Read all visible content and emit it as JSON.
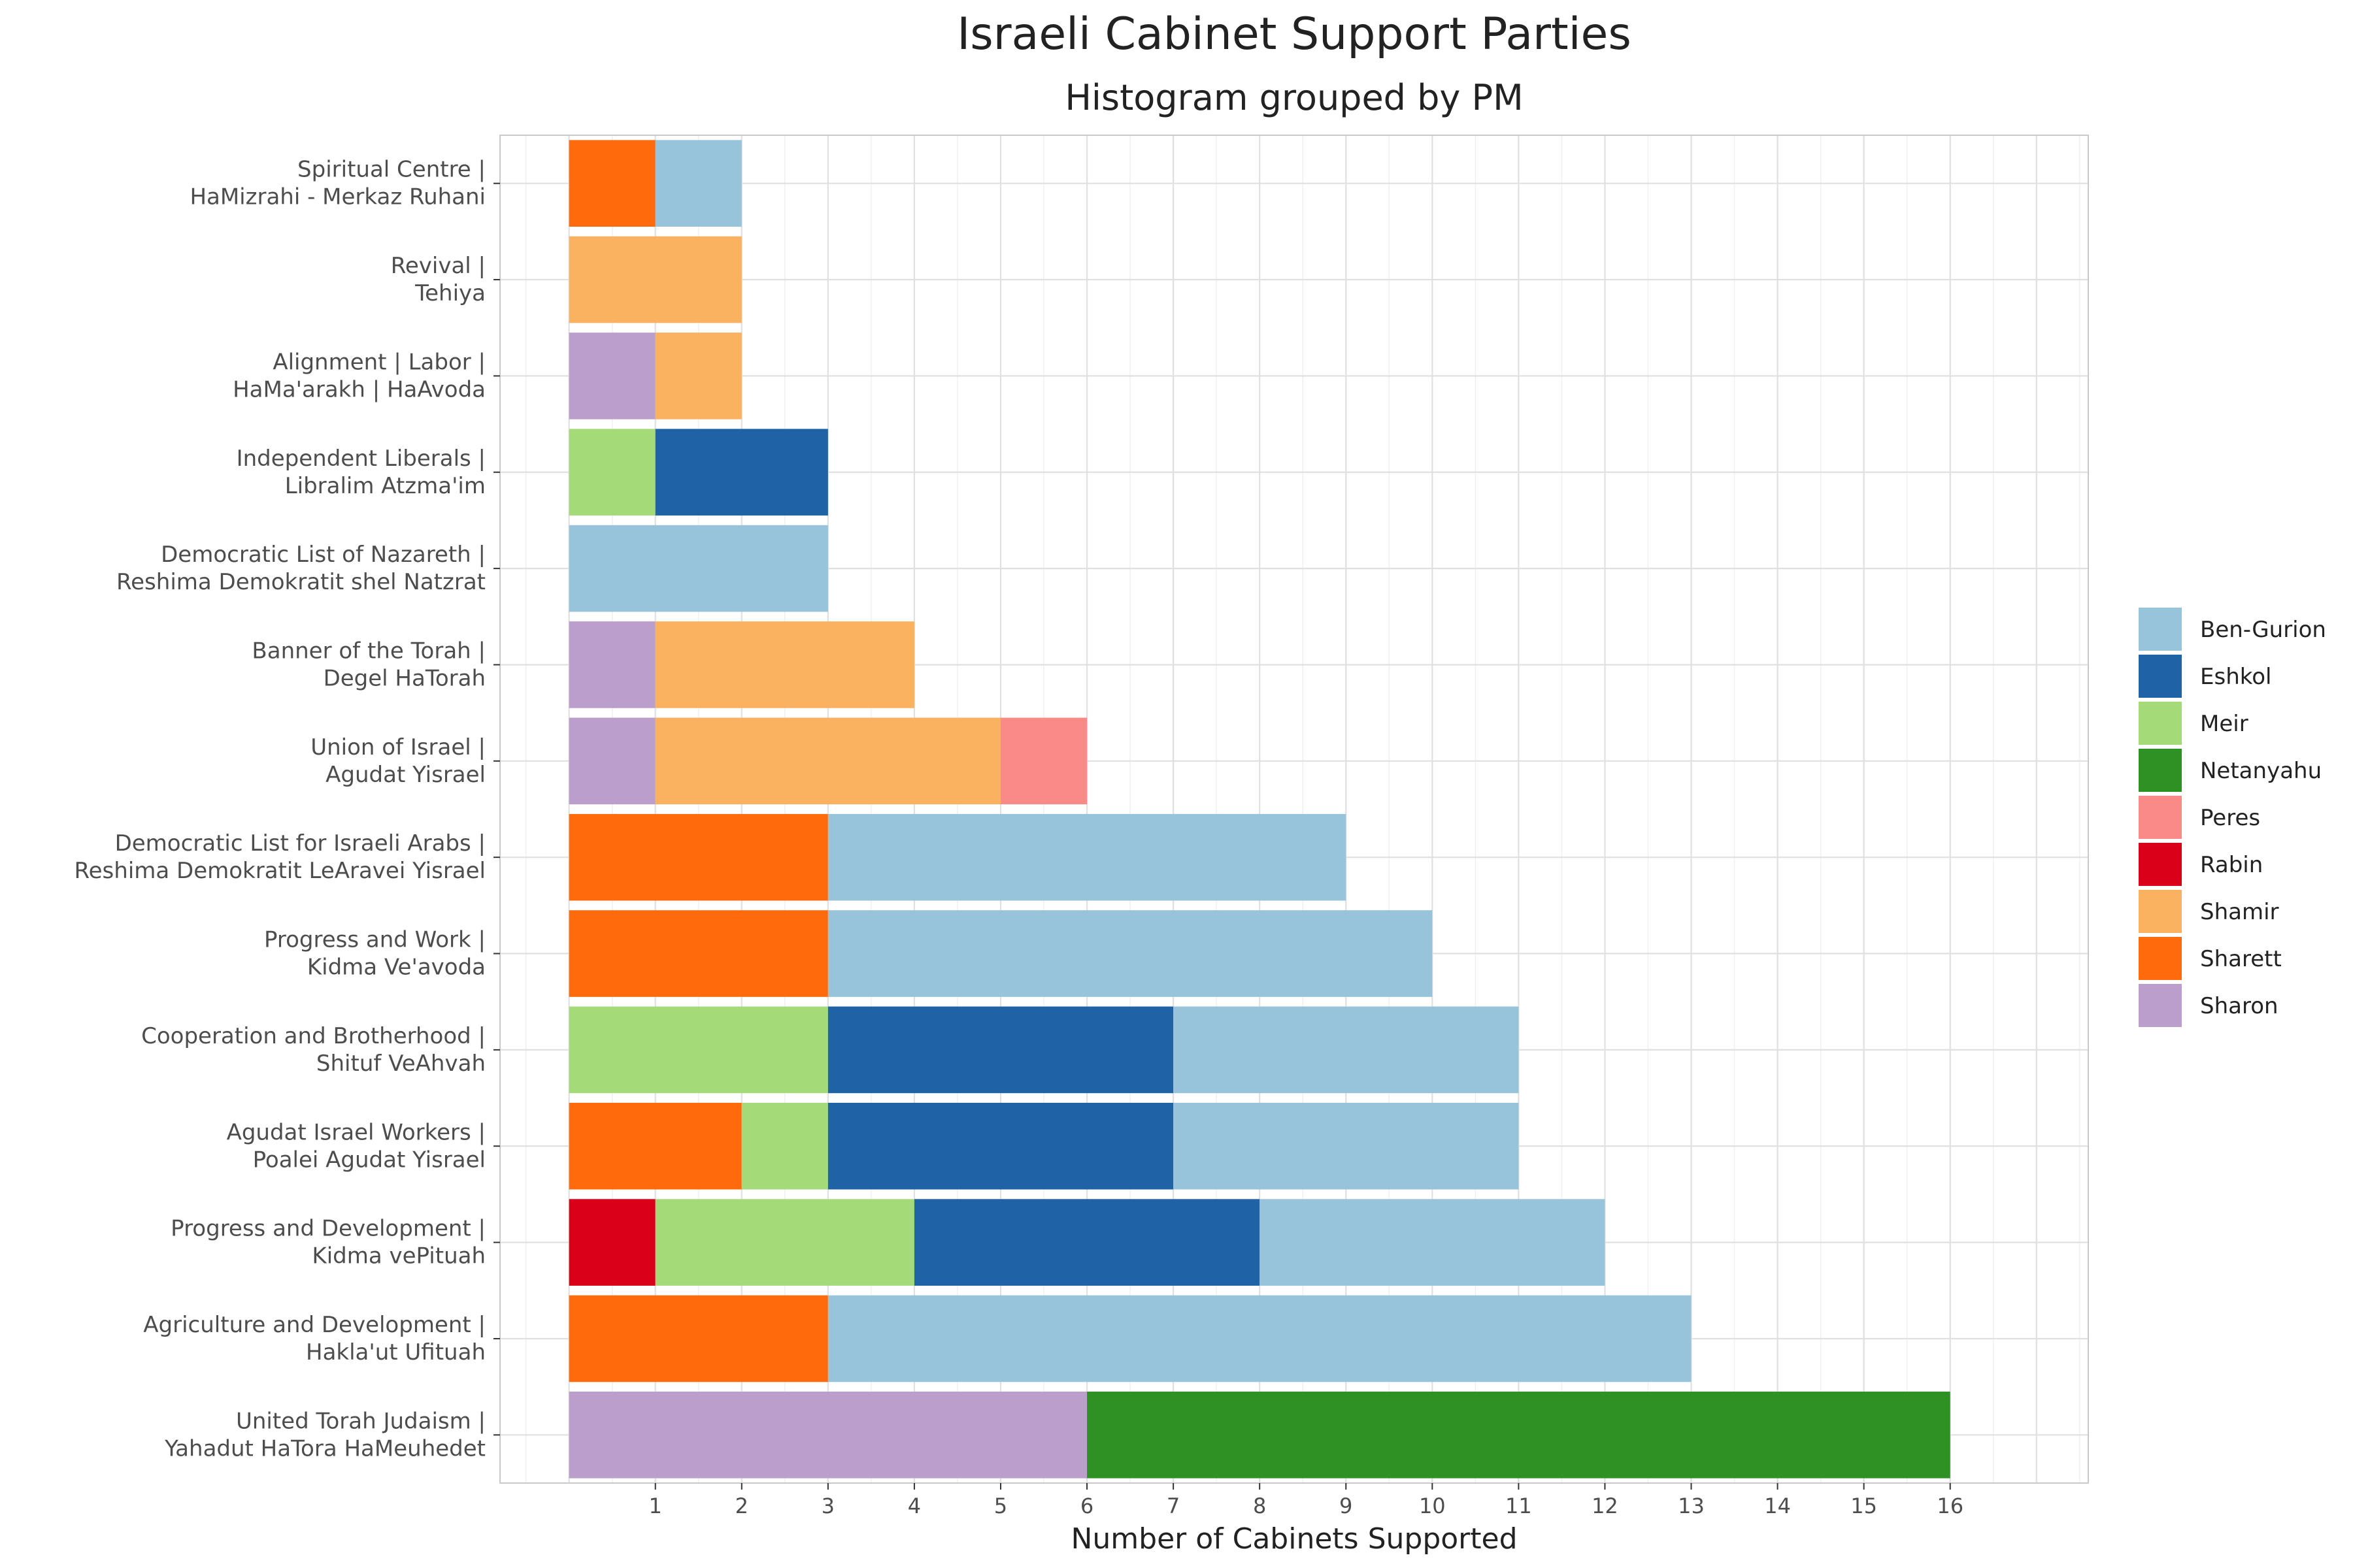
{
  "chart_data": {
    "type": "bar",
    "orientation": "horizontal",
    "stacked": true,
    "title": "Israeli Cabinet Support Parties",
    "subtitle": "Histogram grouped by PM",
    "xlabel": "Number of Cabinets Supported",
    "ylabel": "",
    "xlim": [
      -0.8,
      17.6
    ],
    "xticks": [
      1,
      2,
      3,
      4,
      5,
      6,
      7,
      8,
      9,
      10,
      11,
      12,
      13,
      14,
      15,
      16
    ],
    "grid": true,
    "legend_position": "right",
    "legend_title": "",
    "legend": [
      {
        "name": "Ben-Gurion",
        "color": "#97c3db"
      },
      {
        "name": "Eshkol",
        "color": "#1f63a6"
      },
      {
        "name": "Meir",
        "color": "#a5da78"
      },
      {
        "name": "Netanyahu",
        "color": "#2d9123"
      },
      {
        "name": "Peres",
        "color": "#f98a88"
      },
      {
        "name": "Rabin",
        "color": "#da0019"
      },
      {
        "name": "Shamir",
        "color": "#fab160"
      },
      {
        "name": "Sharett",
        "color": "#ff6b0c"
      },
      {
        "name": "Sharon",
        "color": "#bc9ecc"
      }
    ],
    "categories": [
      {
        "line1": "Spiritual Centre |",
        "line2": "HaMizrahi - Merkaz Ruhani",
        "segments": [
          {
            "pm": "Sharett",
            "value": 1
          },
          {
            "pm": "Ben-Gurion",
            "value": 1
          }
        ]
      },
      {
        "line1": "Revival |",
        "line2": "Tehiya",
        "segments": [
          {
            "pm": "Shamir",
            "value": 2
          }
        ]
      },
      {
        "line1": "Alignment | Labor |",
        "line2": "HaMa'arakh | HaAvoda",
        "segments": [
          {
            "pm": "Sharon",
            "value": 1
          },
          {
            "pm": "Shamir",
            "value": 1
          }
        ]
      },
      {
        "line1": "Independent Liberals |",
        "line2": "Libralim Atzma'im",
        "segments": [
          {
            "pm": "Meir",
            "value": 1
          },
          {
            "pm": "Eshkol",
            "value": 2
          }
        ]
      },
      {
        "line1": "Democratic List of Nazareth |",
        "line2": "Reshima Demokratit shel Natzrat",
        "segments": [
          {
            "pm": "Ben-Gurion",
            "value": 3
          }
        ]
      },
      {
        "line1": "Banner of the Torah |",
        "line2": "Degel HaTorah",
        "segments": [
          {
            "pm": "Sharon",
            "value": 1
          },
          {
            "pm": "Shamir",
            "value": 3
          }
        ]
      },
      {
        "line1": "Union of Israel |",
        "line2": "Agudat Yisrael",
        "segments": [
          {
            "pm": "Sharon",
            "value": 1
          },
          {
            "pm": "Shamir",
            "value": 4
          },
          {
            "pm": "Peres",
            "value": 1
          }
        ]
      },
      {
        "line1": "Democratic List for Israeli Arabs |",
        "line2": "Reshima Demokratit LeAravei Yisrael",
        "segments": [
          {
            "pm": "Sharett",
            "value": 3
          },
          {
            "pm": "Ben-Gurion",
            "value": 6
          }
        ]
      },
      {
        "line1": "Progress and Work |",
        "line2": "Kidma Ve'avoda",
        "segments": [
          {
            "pm": "Sharett",
            "value": 3
          },
          {
            "pm": "Ben-Gurion",
            "value": 7
          }
        ]
      },
      {
        "line1": "Cooperation and Brotherhood |",
        "line2": "Shituf VeAhvah",
        "segments": [
          {
            "pm": "Meir",
            "value": 3
          },
          {
            "pm": "Eshkol",
            "value": 4
          },
          {
            "pm": "Ben-Gurion",
            "value": 4
          }
        ]
      },
      {
        "line1": "Agudat Israel Workers |",
        "line2": "Poalei Agudat Yisrael",
        "segments": [
          {
            "pm": "Sharett",
            "value": 2
          },
          {
            "pm": "Meir",
            "value": 1
          },
          {
            "pm": "Eshkol",
            "value": 4
          },
          {
            "pm": "Ben-Gurion",
            "value": 4
          }
        ]
      },
      {
        "line1": "Progress and Development |",
        "line2": "Kidma vePituah",
        "segments": [
          {
            "pm": "Rabin",
            "value": 1
          },
          {
            "pm": "Meir",
            "value": 3
          },
          {
            "pm": "Eshkol",
            "value": 4
          },
          {
            "pm": "Ben-Gurion",
            "value": 4
          }
        ]
      },
      {
        "line1": "Agriculture and Development |",
        "line2": "Hakla'ut Ufituah",
        "segments": [
          {
            "pm": "Sharett",
            "value": 3
          },
          {
            "pm": "Ben-Gurion",
            "value": 10
          }
        ]
      },
      {
        "line1": "United Torah Judaism |",
        "line2": "Yahadut HaTora HaMeuhedet",
        "segments": [
          {
            "pm": "Sharon",
            "value": 6
          },
          {
            "pm": "Netanyahu",
            "value": 10
          }
        ]
      }
    ]
  }
}
